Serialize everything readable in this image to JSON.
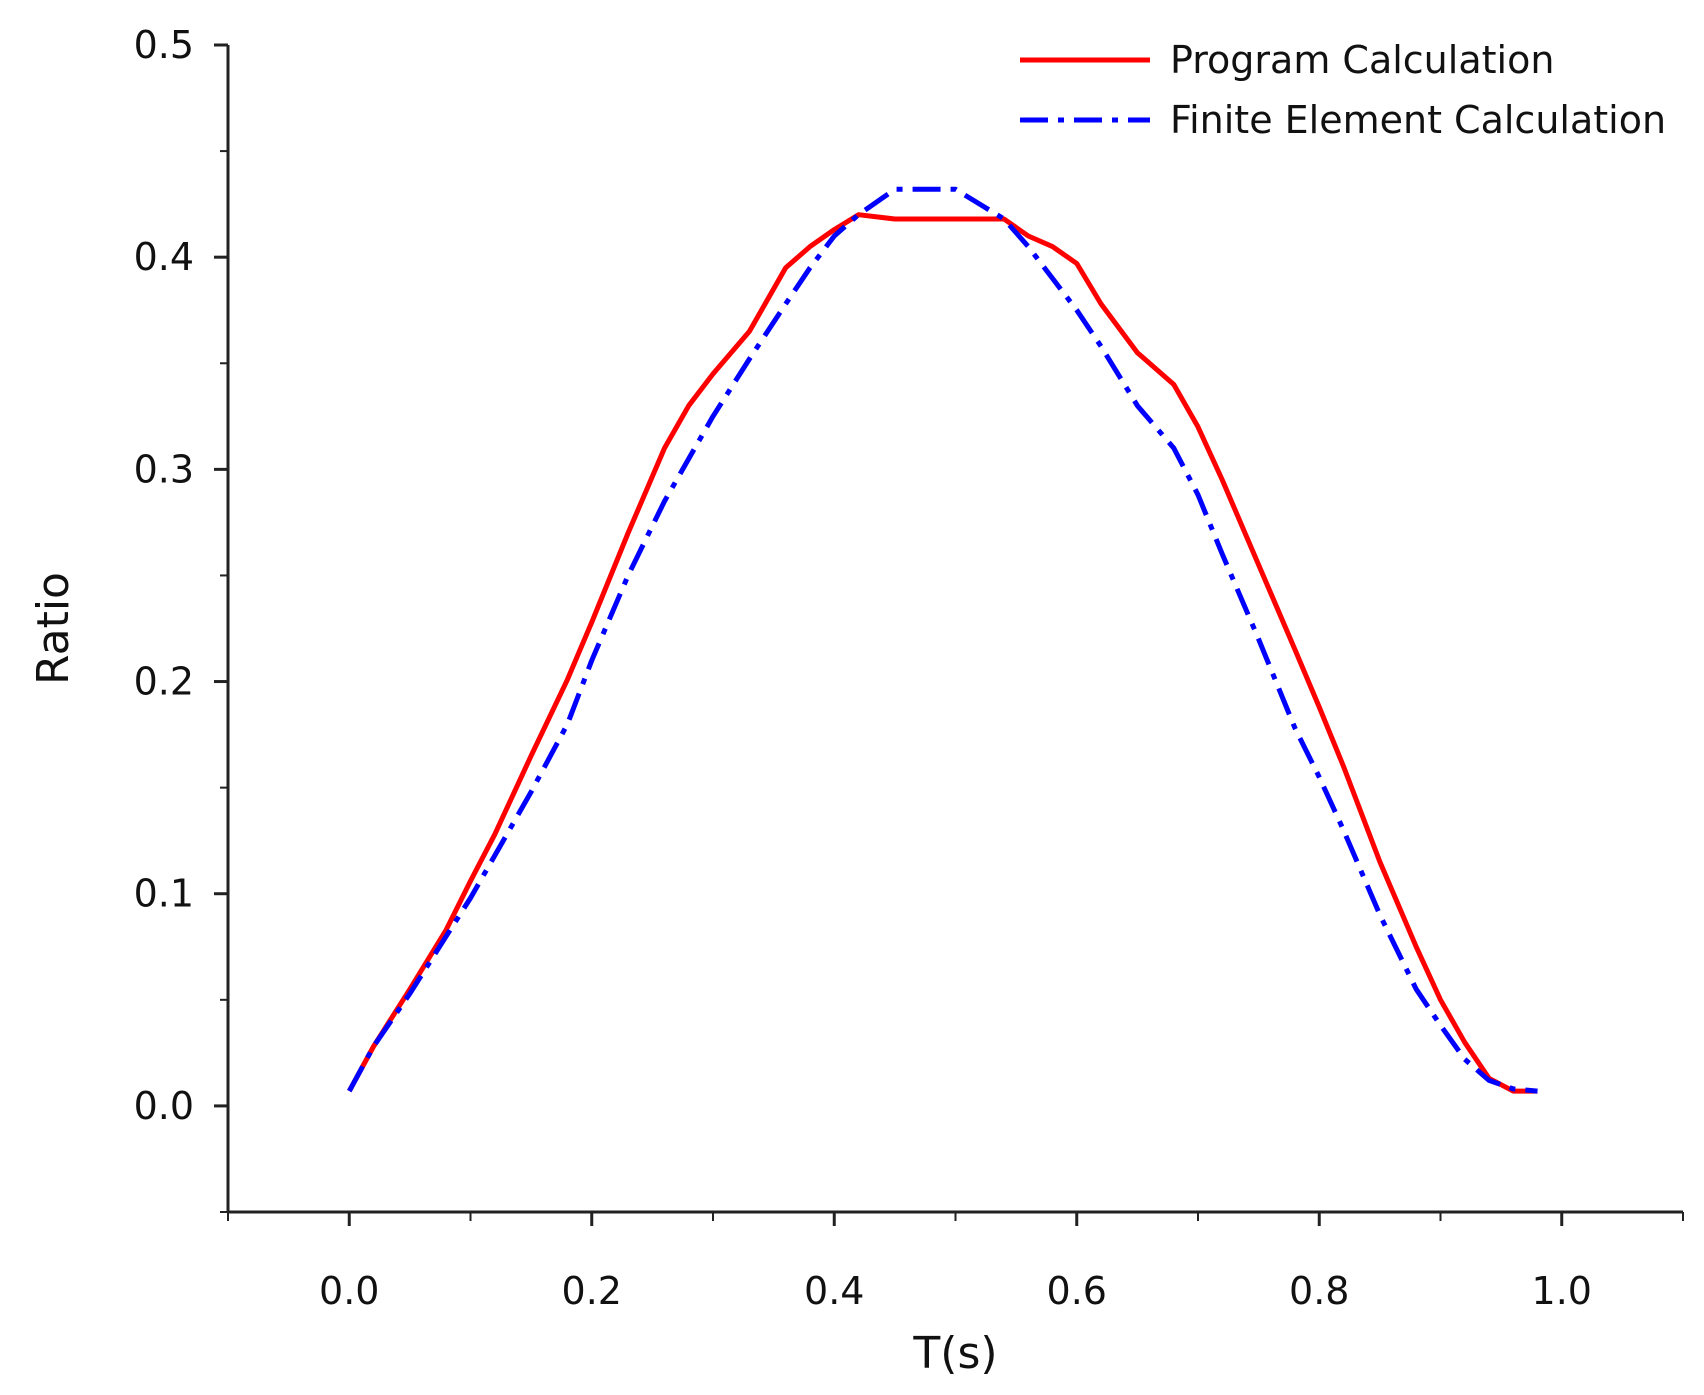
{
  "chart_data": {
    "type": "line",
    "title": "",
    "xlabel": "T(s)",
    "ylabel": "Ratio",
    "xlim": [
      -0.1,
      1.1
    ],
    "ylim": [
      -0.05,
      0.5
    ],
    "x_ticks": [
      0.0,
      0.2,
      0.4,
      0.6,
      0.8,
      1.0
    ],
    "x_tick_labels": [
      "0.0",
      "0.2",
      "0.4",
      "0.6",
      "0.8",
      "1.0"
    ],
    "x_minor_ticks": [
      -0.1,
      0.1,
      0.3,
      0.5,
      0.7,
      0.9,
      1.1
    ],
    "y_ticks": [
      0.0,
      0.1,
      0.2,
      0.3,
      0.4,
      0.5
    ],
    "y_tick_labels": [
      "0.0",
      "0.1",
      "0.2",
      "0.3",
      "0.4",
      "0.5"
    ],
    "y_minor_ticks": [
      -0.05,
      0.05,
      0.15,
      0.25,
      0.35,
      0.45
    ],
    "grid": false,
    "legend_position": "top-right",
    "series": [
      {
        "name": "Program Calculation",
        "color": "#ff0000",
        "style": "solid",
        "x": [
          0.0,
          0.02,
          0.05,
          0.08,
          0.1,
          0.12,
          0.15,
          0.18,
          0.2,
          0.23,
          0.26,
          0.28,
          0.3,
          0.33,
          0.36,
          0.38,
          0.4,
          0.42,
          0.45,
          0.5,
          0.54,
          0.56,
          0.58,
          0.6,
          0.62,
          0.65,
          0.68,
          0.7,
          0.72,
          0.75,
          0.78,
          0.8,
          0.82,
          0.85,
          0.88,
          0.9,
          0.92,
          0.94,
          0.96,
          0.98
        ],
        "y": [
          0.007,
          0.028,
          0.055,
          0.083,
          0.106,
          0.128,
          0.165,
          0.201,
          0.228,
          0.27,
          0.31,
          0.33,
          0.345,
          0.365,
          0.395,
          0.405,
          0.413,
          0.42,
          0.418,
          0.418,
          0.418,
          0.41,
          0.405,
          0.397,
          0.378,
          0.355,
          0.34,
          0.32,
          0.295,
          0.255,
          0.215,
          0.188,
          0.16,
          0.115,
          0.075,
          0.05,
          0.03,
          0.013,
          0.007,
          0.007
        ]
      },
      {
        "name": "Finite Element Calculation",
        "color": "#0000ff",
        "style": "dashdot",
        "x": [
          0.0,
          0.02,
          0.05,
          0.08,
          0.1,
          0.12,
          0.15,
          0.18,
          0.2,
          0.23,
          0.26,
          0.28,
          0.3,
          0.33,
          0.36,
          0.38,
          0.4,
          0.42,
          0.45,
          0.5,
          0.52,
          0.54,
          0.56,
          0.58,
          0.6,
          0.62,
          0.65,
          0.68,
          0.7,
          0.72,
          0.75,
          0.78,
          0.8,
          0.82,
          0.85,
          0.88,
          0.9,
          0.92,
          0.94,
          0.96,
          0.98
        ],
        "y": [
          0.007,
          0.028,
          0.053,
          0.08,
          0.098,
          0.118,
          0.148,
          0.18,
          0.21,
          0.25,
          0.285,
          0.305,
          0.325,
          0.352,
          0.378,
          0.395,
          0.41,
          0.42,
          0.432,
          0.432,
          0.425,
          0.418,
          0.405,
          0.39,
          0.375,
          0.358,
          0.33,
          0.31,
          0.288,
          0.26,
          0.22,
          0.178,
          0.155,
          0.13,
          0.09,
          0.055,
          0.038,
          0.022,
          0.012,
          0.008,
          0.007
        ]
      }
    ]
  }
}
